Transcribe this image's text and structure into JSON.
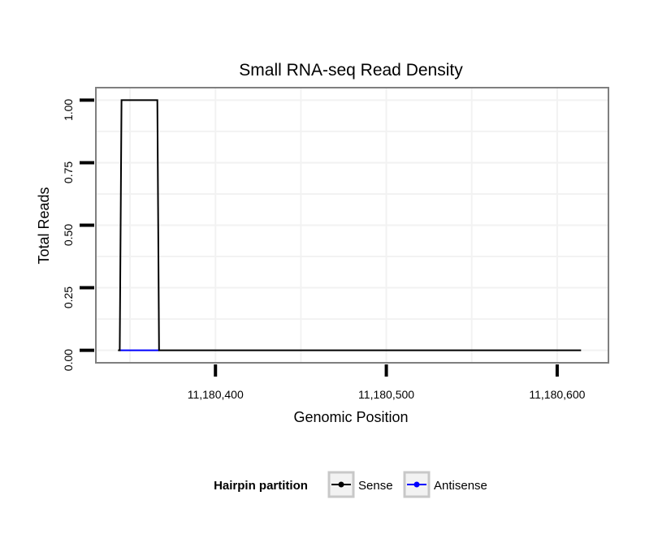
{
  "chart_data": {
    "type": "line",
    "title": "Small RNA-seq Read Density",
    "xlabel": "Genomic Position",
    "ylabel": "Total Reads",
    "xlim": [
      11180330,
      11180630
    ],
    "ylim": [
      -0.05,
      1.05
    ],
    "x_ticks": [
      {
        "value": 11180400,
        "label": "11,180,400"
      },
      {
        "value": 11180500,
        "label": "11,180,500"
      },
      {
        "value": 11180600,
        "label": "11,180,600"
      }
    ],
    "y_ticks": [
      {
        "value": 0.0,
        "label": "0.00"
      },
      {
        "value": 0.25,
        "label": "0.25"
      },
      {
        "value": 0.5,
        "label": "0.50"
      },
      {
        "value": 0.75,
        "label": "0.75"
      },
      {
        "value": 1.0,
        "label": "1.00"
      }
    ],
    "grid": true,
    "legend_title": "Hairpin partition",
    "legend_position": "bottom",
    "series": [
      {
        "name": "Sense",
        "color": "#000000",
        "x": [
          11180343,
          11180344,
          11180345,
          11180366,
          11180367,
          11180614
        ],
        "y": [
          0,
          0,
          1,
          1,
          0,
          0
        ]
      },
      {
        "name": "Antisense",
        "color": "#0000ff",
        "x": [
          11180344,
          11180367
        ],
        "y": [
          0,
          0
        ]
      }
    ]
  }
}
